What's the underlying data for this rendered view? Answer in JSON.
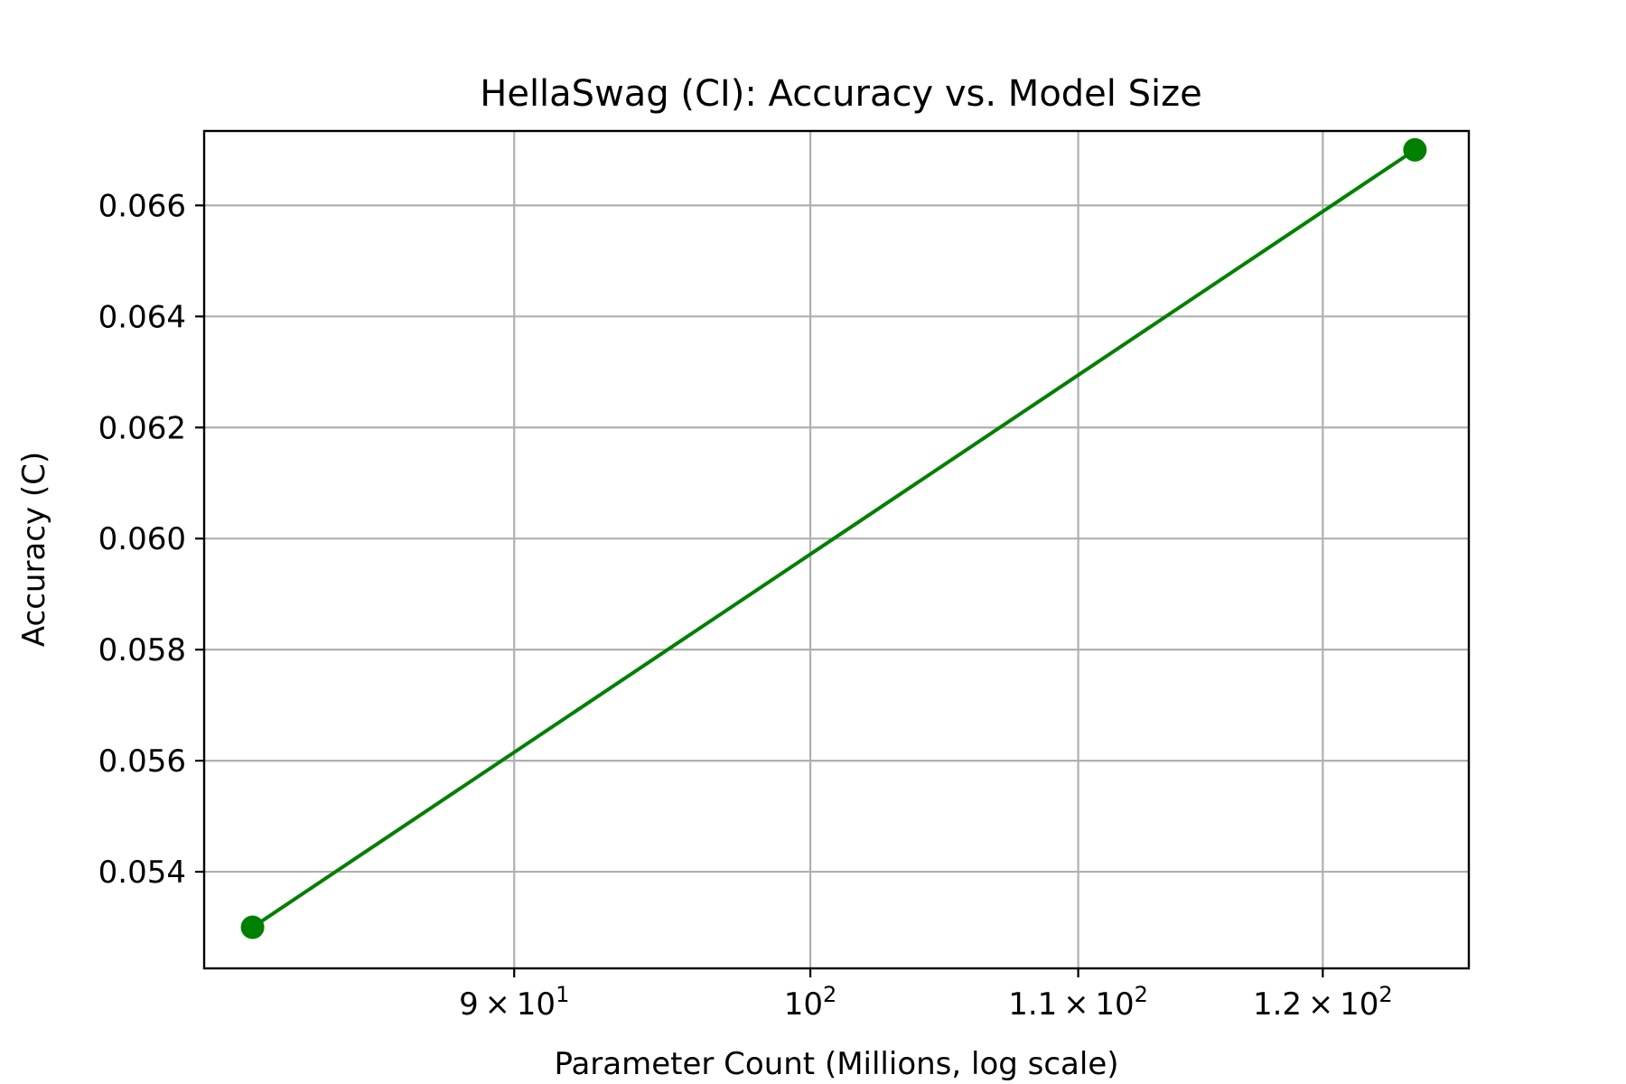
{
  "chart_data": {
    "type": "line",
    "title": "HellaSwag (CI): Accuracy vs. Model Size",
    "xlabel": "Parameter Count (Millions, log scale)",
    "ylabel": "Accuracy (C)",
    "xscale": "log",
    "xlim": [
      80.6,
      126.4
    ],
    "ylim": [
      0.05226,
      0.06734
    ],
    "grid": true,
    "x_ticks": [
      {
        "value": 90,
        "mantissa": "9",
        "exp": "1"
      },
      {
        "value": 100,
        "mantissa": "",
        "exp": "2"
      },
      {
        "value": 110,
        "mantissa": "1.1",
        "exp": "2"
      },
      {
        "value": 120,
        "mantissa": "1.2",
        "exp": "2"
      }
    ],
    "y_ticks": [
      {
        "value": 0.054,
        "label": "0.054"
      },
      {
        "value": 0.056,
        "label": "0.056"
      },
      {
        "value": 0.058,
        "label": "0.058"
      },
      {
        "value": 0.06,
        "label": "0.060"
      },
      {
        "value": 0.062,
        "label": "0.062"
      },
      {
        "value": 0.064,
        "label": "0.064"
      },
      {
        "value": 0.066,
        "label": "0.066"
      }
    ],
    "series": [
      {
        "name": "Accuracy",
        "color": "#008000",
        "x": [
          82,
          124
        ],
        "y": [
          0.053,
          0.067
        ]
      }
    ]
  }
}
